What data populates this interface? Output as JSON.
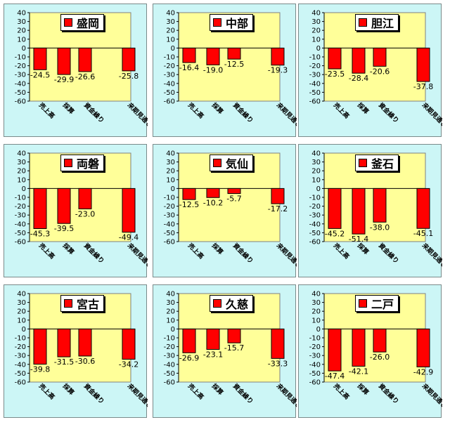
{
  "chart_data": [
    {
      "type": "bar",
      "title": "盛岡",
      "categories": [
        "売上高",
        "採算",
        "資金繰り",
        "来期見通し"
      ],
      "values": [
        -24.5,
        -29.9,
        -26.6,
        -25.8
      ],
      "ylim": [
        -60,
        40
      ],
      "yticks": [
        "40",
        "30",
        "20",
        "10",
        "0",
        "-10",
        "-20",
        "-30",
        "-40",
        "-50",
        "-60"
      ],
      "value_labels": [
        "-24.5",
        "-29.9",
        "-26.6",
        "-25.8"
      ],
      "bar_color": "#ff0000",
      "plot_bg": "#ffff99",
      "legend_position": "top-center"
    },
    {
      "type": "bar",
      "title": "中部",
      "categories": [
        "売上高",
        "採算",
        "資金繰り",
        "来期見通し"
      ],
      "values": [
        -16.4,
        -19.0,
        -12.5,
        -19.3
      ],
      "ylim": [
        -60,
        40
      ],
      "yticks": [
        "40",
        "30",
        "20",
        "10",
        "0",
        "-10",
        "-20",
        "-30",
        "-40",
        "-50",
        "-60"
      ],
      "value_labels": [
        "-16.4",
        "-19.0",
        "-12.5",
        "-19.3"
      ],
      "bar_color": "#ff0000",
      "plot_bg": "#ffff99",
      "legend_position": "top-center"
    },
    {
      "type": "bar",
      "title": "胆江",
      "categories": [
        "売上高",
        "採算",
        "資金繰り",
        "来期見通し"
      ],
      "values": [
        -23.5,
        -28.4,
        -20.6,
        -37.8
      ],
      "ylim": [
        -60,
        40
      ],
      "yticks": [
        "40",
        "30",
        "20",
        "10",
        "0",
        "-10",
        "-20",
        "-30",
        "-40",
        "-50",
        "-60"
      ],
      "value_labels": [
        "-23.5",
        "-28.4",
        "-20.6",
        "-37.8"
      ],
      "bar_color": "#ff0000",
      "plot_bg": "#ffff99",
      "legend_position": "top-center"
    },
    {
      "type": "bar",
      "title": "両磐",
      "categories": [
        "売上高",
        "採算",
        "資金繰り",
        "来期見通し"
      ],
      "values": [
        -45.3,
        -39.5,
        -23.0,
        -49.4
      ],
      "ylim": [
        -60,
        40
      ],
      "yticks": [
        "40",
        "30",
        "20",
        "10",
        "0",
        "-10",
        "-20",
        "-30",
        "-40",
        "-50",
        "-60"
      ],
      "value_labels": [
        "-45.3",
        "-39.5",
        "-23.0",
        "-49.4"
      ],
      "bar_color": "#ff0000",
      "plot_bg": "#ffff99",
      "legend_position": "top-center"
    },
    {
      "type": "bar",
      "title": "気仙",
      "categories": [
        "売上高",
        "採算",
        "資金繰り",
        "来期見通し"
      ],
      "values": [
        -12.5,
        -10.2,
        -5.7,
        -17.2
      ],
      "ylim": [
        -60,
        40
      ],
      "yticks": [
        "40",
        "30",
        "20",
        "10",
        "0",
        "-10",
        "-20",
        "-30",
        "-40",
        "-50",
        "-60"
      ],
      "value_labels": [
        "-12.5",
        "-10.2",
        "-5.7",
        "-17.2"
      ],
      "bar_color": "#ff0000",
      "plot_bg": "#ffff99",
      "legend_position": "top-center"
    },
    {
      "type": "bar",
      "title": "釜石",
      "categories": [
        "売上高",
        "採算",
        "資金繰り",
        "来期見通し"
      ],
      "values": [
        -45.2,
        -51.4,
        -38.0,
        -45.1
      ],
      "ylim": [
        -60,
        40
      ],
      "yticks": [
        "40",
        "30",
        "20",
        "10",
        "0",
        "-10",
        "-20",
        "-30",
        "-40",
        "-50",
        "-60"
      ],
      "value_labels": [
        "-45.2",
        "-51.4",
        "-38.0",
        "-45.1"
      ],
      "bar_color": "#ff0000",
      "plot_bg": "#ffff99",
      "legend_position": "top-center"
    },
    {
      "type": "bar",
      "title": "宮古",
      "categories": [
        "売上高",
        "採算",
        "資金繰り",
        "来期見通し"
      ],
      "values": [
        -39.8,
        -31.5,
        -30.6,
        -34.2
      ],
      "ylim": [
        -60,
        40
      ],
      "yticks": [
        "40",
        "30",
        "20",
        "10",
        "0",
        "-10",
        "-20",
        "-30",
        "-40",
        "-50",
        "-60"
      ],
      "value_labels": [
        "-39.8",
        "-31.5",
        "-30.6",
        "-34.2"
      ],
      "bar_color": "#ff0000",
      "plot_bg": "#ffff99",
      "legend_position": "top-center"
    },
    {
      "type": "bar",
      "title": "久慈",
      "categories": [
        "売上高",
        "採算",
        "資金繰り",
        "来期見通し"
      ],
      "values": [
        -26.9,
        -23.1,
        -15.7,
        -33.3
      ],
      "ylim": [
        -60,
        40
      ],
      "yticks": [
        "40",
        "30",
        "20",
        "10",
        "0",
        "-10",
        "-20",
        "-30",
        "-40",
        "-50",
        "-60"
      ],
      "value_labels": [
        "-26.9",
        "-23.1",
        "-15.7",
        "-33.3"
      ],
      "bar_color": "#ff0000",
      "plot_bg": "#ffff99",
      "legend_position": "top-center"
    },
    {
      "type": "bar",
      "title": "二戸",
      "categories": [
        "売上高",
        "採算",
        "資金繰り",
        "来期見通し"
      ],
      "values": [
        -47.4,
        -42.1,
        -26.0,
        -42.9
      ],
      "ylim": [
        -60,
        40
      ],
      "yticks": [
        "40",
        "30",
        "20",
        "10",
        "0",
        "-10",
        "-20",
        "-30",
        "-40",
        "-50",
        "-60"
      ],
      "value_labels": [
        "-47.4",
        "-42.1",
        "-26.0",
        "-42.9"
      ],
      "bar_color": "#ff0000",
      "plot_bg": "#ffff99",
      "legend_position": "top-center"
    }
  ]
}
